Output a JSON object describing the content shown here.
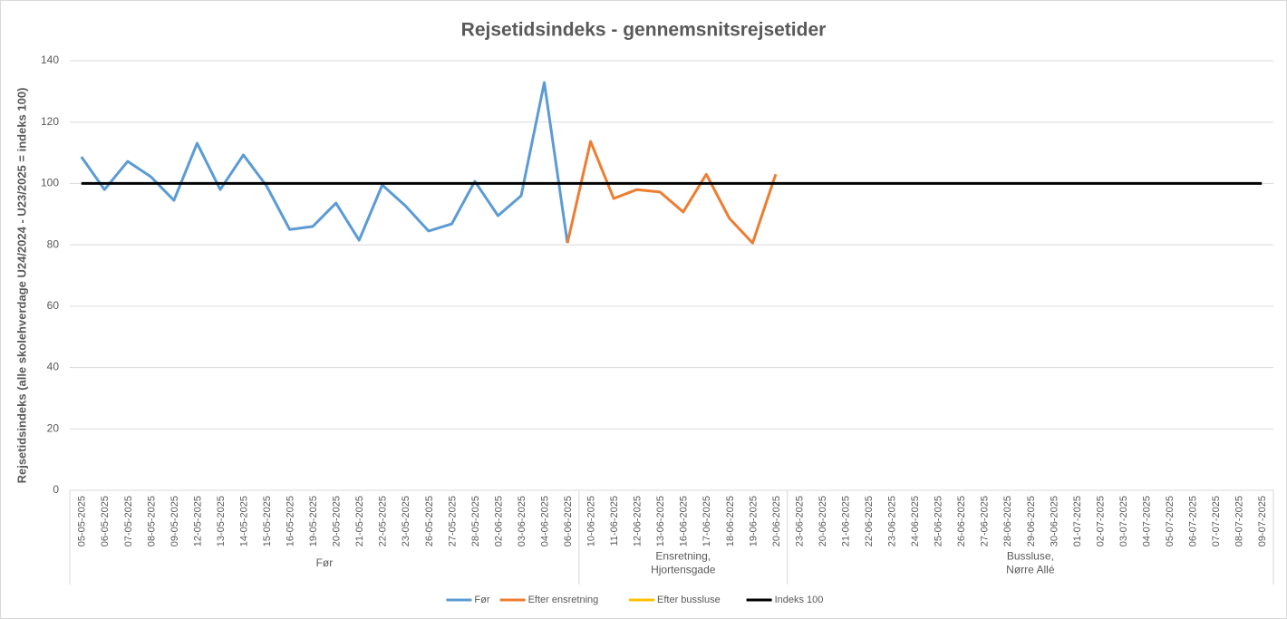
{
  "chart_data": {
    "type": "line",
    "title": "Rejsetidsindeks - gennemsnitsrejsetider",
    "y_label": "Rejsetidsindeks (alle skolehverdage U24/2024 - U23/2025 = indeks 100)",
    "categories": [
      "05-05-2025",
      "06-05-2025",
      "07-05-2025",
      "08-05-2025",
      "09-05-2025",
      "12-05-2025",
      "13-05-2025",
      "14-05-2025",
      "15-05-2025",
      "16-05-2025",
      "19-05-2025",
      "20-05-2025",
      "21-05-2025",
      "22-05-2025",
      "23-05-2025",
      "26-05-2025",
      "27-05-2025",
      "28-05-2025",
      "02-06-2025",
      "03-06-2025",
      "04-06-2025",
      "06-06-2025",
      "10-06-2025",
      "11-06-2025",
      "12-06-2025",
      "13-06-2025",
      "16-06-2025",
      "17-06-2025",
      "18-06-2025",
      "19-06-2025",
      "20-06-2025",
      "23-06-2025",
      "20-06-2025",
      "21-06-2025",
      "22-06-2025",
      "23-06-2025",
      "24-06-2025",
      "25-06-2025",
      "26-06-2025",
      "27-06-2025",
      "28-06-2025",
      "29-06-2025",
      "30-06-2025",
      "01-07-2025",
      "02-07-2025",
      "03-07-2025",
      "04-07-2025",
      "05-07-2025",
      "06-07-2025",
      "07-07-2025",
      "08-07-2025",
      "09-07-2025"
    ],
    "groups": [
      {
        "label": [
          "Før"
        ],
        "count": 22
      },
      {
        "label": [
          "Ensretning,",
          "Hjortensgade"
        ],
        "count": 9
      },
      {
        "label": [
          "Bussluse,",
          "Nørre Allé"
        ],
        "count": 21
      }
    ],
    "series": [
      {
        "name": "Før",
        "color": "#5b9bd5",
        "values": [
          108.7,
          98,
          107.2,
          102.2,
          94.5,
          113.1,
          98,
          109.3,
          99.2,
          85,
          86,
          93.6,
          81.5,
          99.5,
          92.7,
          84.5,
          86.8,
          100.7,
          89.5,
          96,
          132.9,
          80.6,
          null,
          null,
          null,
          null,
          null,
          null,
          null,
          null,
          null,
          null,
          null,
          null,
          null,
          null,
          null,
          null,
          null,
          null,
          null,
          null,
          null,
          null,
          null,
          null,
          null,
          null,
          null,
          null,
          null,
          null
        ]
      },
      {
        "name": "Efter ensretning",
        "color": "#ed7d31",
        "values": [
          null,
          null,
          null,
          null,
          null,
          null,
          null,
          null,
          null,
          null,
          null,
          null,
          null,
          null,
          null,
          null,
          null,
          null,
          null,
          null,
          null,
          80.6,
          113.7,
          95.1,
          98,
          97.2,
          90.7,
          103,
          88.6,
          80.6,
          103,
          null,
          null,
          null,
          null,
          null,
          null,
          null,
          null,
          null,
          null,
          null,
          null,
          null,
          null,
          null,
          null,
          null,
          null,
          null,
          null,
          null
        ]
      },
      {
        "name": "Efter bussluse",
        "color": "#ffc000",
        "values": [
          null,
          null,
          null,
          null,
          null,
          null,
          null,
          null,
          null,
          null,
          null,
          null,
          null,
          null,
          null,
          null,
          null,
          null,
          null,
          null,
          null,
          null,
          null,
          null,
          null,
          null,
          null,
          null,
          null,
          null,
          null,
          null,
          null,
          null,
          null,
          null,
          null,
          null,
          null,
          null,
          null,
          null,
          null,
          null,
          null,
          null,
          null,
          null,
          null,
          null,
          null,
          null
        ]
      },
      {
        "name": "Indeks 100",
        "color": "#000000",
        "values": [
          100,
          100,
          100,
          100,
          100,
          100,
          100,
          100,
          100,
          100,
          100,
          100,
          100,
          100,
          100,
          100,
          100,
          100,
          100,
          100,
          100,
          100,
          100,
          100,
          100,
          100,
          100,
          100,
          100,
          100,
          100,
          100,
          100,
          100,
          100,
          100,
          100,
          100,
          100,
          100,
          100,
          100,
          100,
          100,
          100,
          100,
          100,
          100,
          100,
          100,
          100,
          100
        ]
      }
    ],
    "ylim": [
      0,
      140
    ],
    "yticks": [
      0,
      20,
      40,
      60,
      80,
      100,
      120,
      140
    ],
    "grid": true,
    "legend": "bottom"
  }
}
